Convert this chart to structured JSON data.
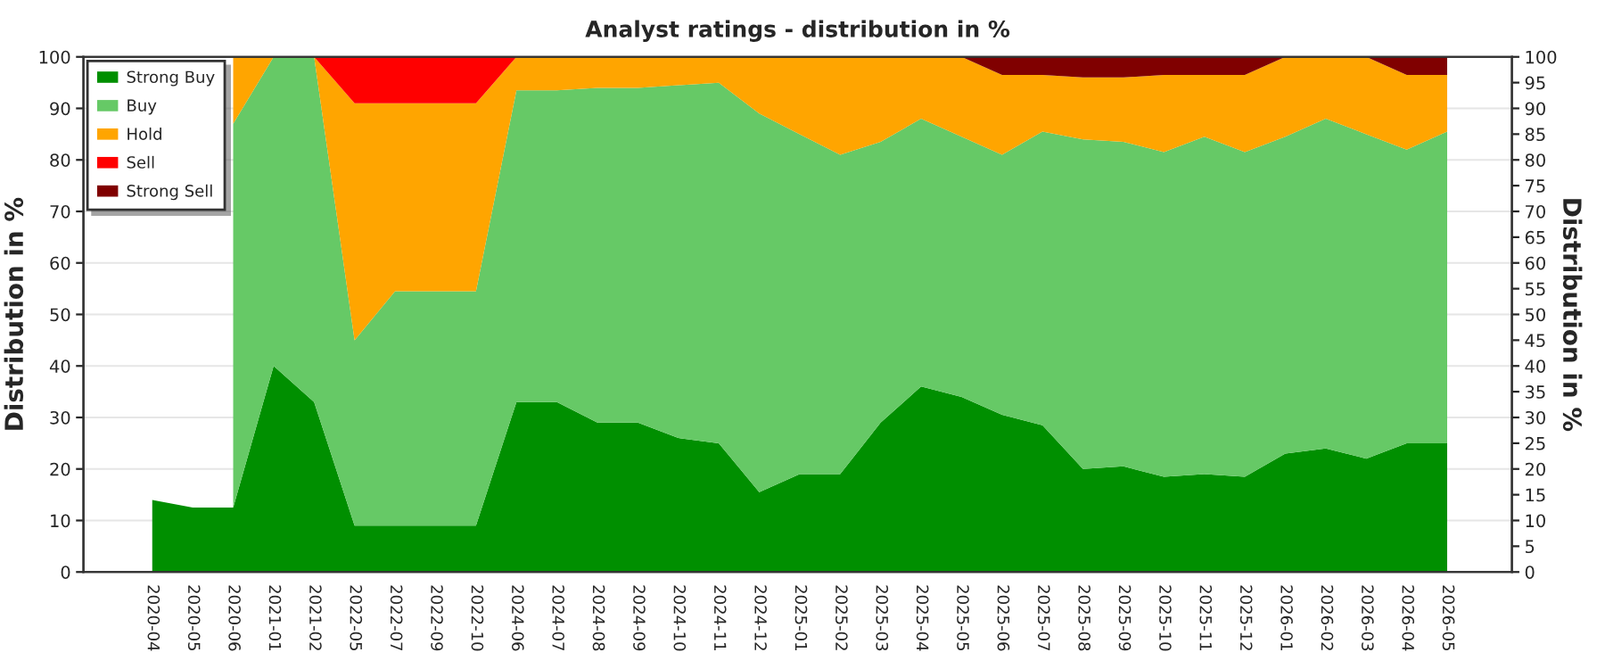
{
  "chart_data": {
    "type": "area",
    "stacked": true,
    "title": "Analyst ratings - distribution in %",
    "ylabel": "Distribution in %",
    "y2label": "Distribution in %",
    "categories": [
      "2020-04",
      "2020-05",
      "2020-06",
      "2021-01",
      "2021-02",
      "2022-05",
      "2022-07",
      "2022-09",
      "2022-10",
      "2024-06",
      "2024-07",
      "2024-08",
      "2024-09",
      "2024-10",
      "2024-11",
      "2024-12",
      "2025-01",
      "2025-02",
      "2025-03",
      "2025-04",
      "2025-05",
      "2025-06",
      "2025-07",
      "2025-08",
      "2025-09",
      "2025-10",
      "2025-11",
      "2025-12",
      "2026-01",
      "2026-02",
      "2026-03",
      "2026-04",
      "2026-05"
    ],
    "series": [
      {
        "name": "Strong Buy",
        "color": "#008f00",
        "values": [
          14,
          12.5,
          12.5,
          40,
          33,
          9,
          9,
          9,
          9,
          33,
          33,
          29,
          29,
          26,
          25,
          15.5,
          19,
          19,
          29,
          36,
          34,
          30.5,
          28.5,
          20,
          20.5,
          18.5,
          19,
          18.5,
          23,
          24,
          22,
          25,
          25
        ]
      },
      {
        "name": "Buy",
        "color": "#66c966",
        "values": [
          null,
          null,
          74.5,
          60,
          67,
          36,
          45.5,
          45.5,
          45.5,
          60.5,
          60.5,
          65,
          65,
          68.5,
          70,
          73.5,
          66,
          62,
          54.5,
          52,
          50.5,
          50.5,
          57,
          64,
          63,
          63,
          65.5,
          63,
          61.5,
          64,
          63,
          57,
          60.5
        ]
      },
      {
        "name": "Hold",
        "color": "#ffa500",
        "values": [
          null,
          null,
          13,
          0,
          0,
          46,
          36.5,
          36.5,
          36.5,
          6.5,
          6.5,
          6,
          6,
          5.5,
          5,
          11,
          15,
          19,
          16.5,
          12,
          15.5,
          15.5,
          11,
          12,
          12.5,
          15,
          12,
          15,
          15.5,
          12,
          15,
          14.5,
          11
        ]
      },
      {
        "name": "Sell",
        "color": "#ff0000",
        "values": [
          null,
          null,
          0,
          0,
          0,
          9,
          9,
          9,
          9,
          0,
          0,
          0,
          0,
          0,
          0,
          0,
          0,
          0,
          0,
          0,
          0,
          0,
          0,
          0,
          0,
          0,
          0,
          0,
          0,
          0,
          0,
          0,
          0
        ]
      },
      {
        "name": "Strong Sell",
        "color": "#800000",
        "values": [
          null,
          null,
          0,
          0,
          0,
          0,
          0,
          0,
          0,
          0,
          0,
          0,
          0,
          0,
          0,
          0,
          0,
          0,
          0,
          0,
          0,
          3.5,
          3.5,
          4,
          4,
          3.5,
          3.5,
          3.5,
          0,
          0,
          0,
          3.5,
          3.5
        ]
      }
    ],
    "ylim": [
      0,
      100
    ],
    "yticks": [
      0,
      10,
      20,
      30,
      40,
      50,
      60,
      70,
      80,
      90,
      100
    ],
    "y2lim": [
      0,
      100
    ],
    "y2ticks": [
      0,
      5,
      10,
      15,
      20,
      25,
      30,
      35,
      40,
      45,
      50,
      55,
      60,
      65,
      70,
      75,
      80,
      85,
      90,
      95,
      100
    ],
    "grid": "y",
    "legend": "top left"
  }
}
